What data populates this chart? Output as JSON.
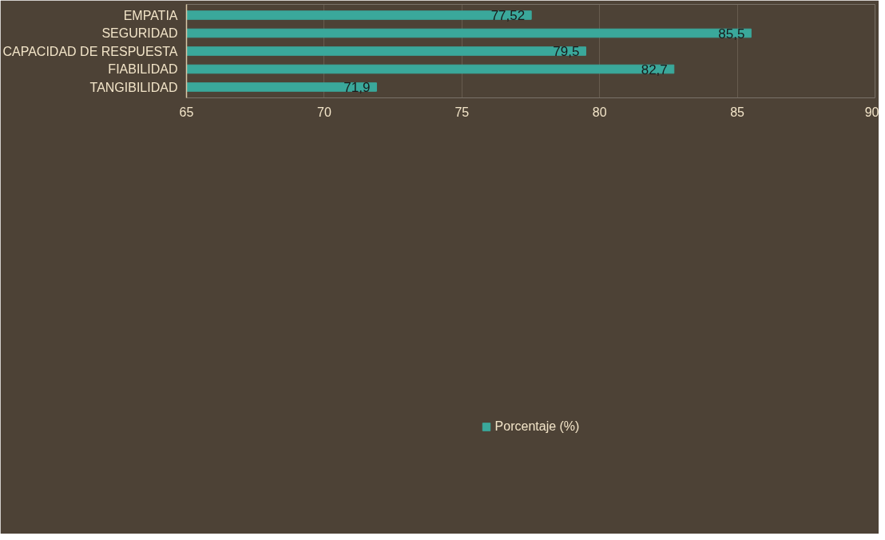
{
  "chart_data": {
    "type": "bar",
    "orientation": "horizontal",
    "categories": [
      "EMPATIA",
      "SEGURIDAD",
      "CAPACIDAD DE RESPUESTA",
      "FIABILIDAD",
      "TANGIBILIDAD"
    ],
    "series": [
      {
        "name": "Porcentaje (%)",
        "color": "#3aa89b",
        "values": [
          77.52,
          85.5,
          79.5,
          82.7,
          71.9
        ],
        "value_labels": [
          "77,52",
          "85,5",
          "79,5",
          "82,7",
          "71,9"
        ]
      }
    ],
    "xlim": [
      65,
      90
    ],
    "xticks": [
      65,
      70,
      75,
      80,
      85,
      90
    ],
    "grid": "x",
    "legend": "bottom"
  }
}
